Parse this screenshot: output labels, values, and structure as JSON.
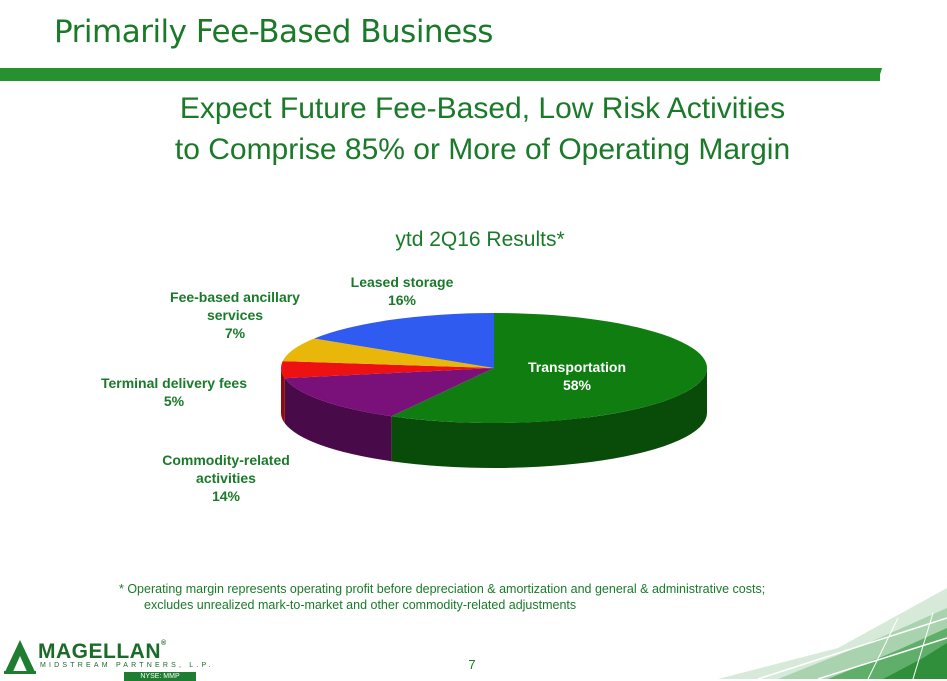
{
  "slide": {
    "title": "Primarily Fee-Based Business",
    "headline_line1": "Expect Future Fee-Based, Low Risk Activities",
    "headline_line2": "to Comprise 85% or More of Operating Margin",
    "footnote_line1": "* Operating margin represents operating profit before depreciation & amortization and general & administrative costs;",
    "footnote_line2": "excludes unrealized mark-to-market and other commodity-related adjustments",
    "page_number": "7"
  },
  "logo": {
    "name": "MAGELLAN",
    "registered": "®",
    "subtitle": "MIDSTREAM PARTNERS, L.P.",
    "ticker": "NYSE: MMP"
  },
  "colors": {
    "accent": "#1a7a2a",
    "transportation": "#0f7d0f",
    "leased_storage": "#2f5bf0",
    "fee_based_ancillary": "#e8b70a",
    "terminal_delivery": "#ee1111",
    "commodity_related": "#7a107a"
  },
  "chart_data": {
    "type": "pie",
    "title": "ytd 2Q16 Results*",
    "unit": "%",
    "slices": [
      {
        "label_lines": [
          "Transportation"
        ],
        "value": 58,
        "value_label": "58%",
        "color": "#0f7d0f"
      },
      {
        "label_lines": [
          "Commodity-related",
          "activities"
        ],
        "value": 14,
        "value_label": "14%",
        "color": "#7a107a"
      },
      {
        "label_lines": [
          "Terminal delivery fees"
        ],
        "value": 5,
        "value_label": "5%",
        "color": "#ee1111"
      },
      {
        "label_lines": [
          "Fee-based ancillary",
          "services"
        ],
        "value": 7,
        "value_label": "7%",
        "color": "#e8b70a"
      },
      {
        "label_lines": [
          "Leased storage"
        ],
        "value": 16,
        "value_label": "16%",
        "color": "#2f5bf0"
      }
    ],
    "three_d": true,
    "legend": "none"
  }
}
